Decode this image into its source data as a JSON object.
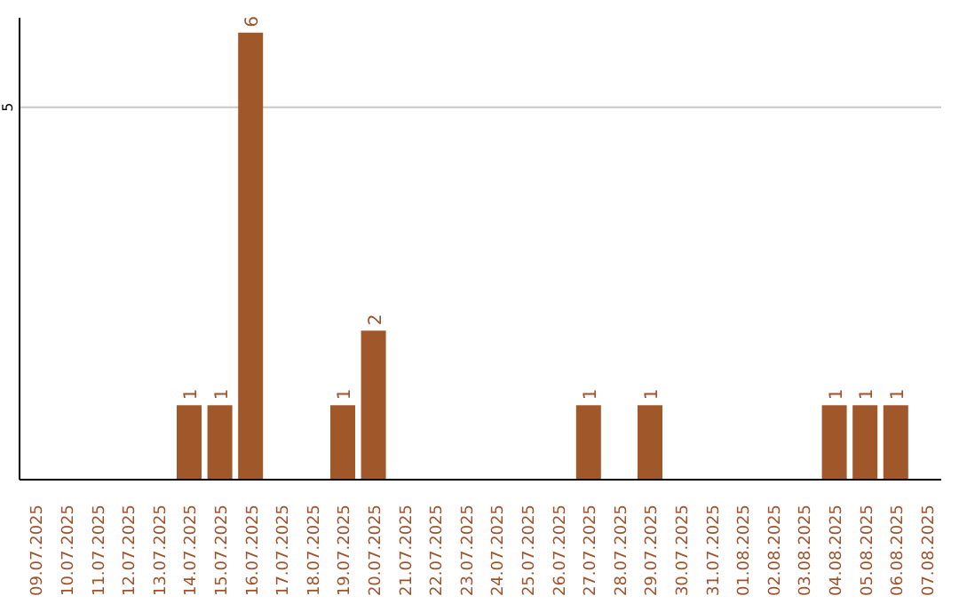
{
  "chart_data": {
    "type": "bar",
    "categories": [
      "09.07.2025",
      "10.07.2025",
      "11.07.2025",
      "12.07.2025",
      "13.07.2025",
      "14.07.2025",
      "15.07.2025",
      "16.07.2025",
      "17.07.2025",
      "18.07.2025",
      "19.07.2025",
      "20.07.2025",
      "21.07.2025",
      "22.07.2025",
      "23.07.2025",
      "24.07.2025",
      "25.07.2025",
      "26.07.2025",
      "27.07.2025",
      "28.07.2025",
      "29.07.2025",
      "30.07.2025",
      "31.07.2025",
      "01.08.2025",
      "02.08.2025",
      "03.08.2025",
      "04.08.2025",
      "05.08.2025",
      "06.08.2025",
      "07.08.2025"
    ],
    "values": [
      0,
      0,
      0,
      0,
      0,
      1,
      1,
      6,
      0,
      0,
      1,
      2,
      0,
      0,
      0,
      0,
      0,
      0,
      1,
      0,
      1,
      0,
      0,
      0,
      0,
      0,
      1,
      1,
      1,
      0
    ],
    "value_labels": [
      null,
      null,
      null,
      null,
      null,
      "1",
      "1",
      "6",
      null,
      null,
      "1",
      "2",
      null,
      null,
      null,
      null,
      null,
      null,
      "1",
      null,
      "1",
      null,
      null,
      null,
      null,
      null,
      "1",
      "1",
      "1",
      null
    ],
    "color": "#a0572a",
    "ylim": [
      0,
      6.2
    ],
    "yticks": [
      5
    ],
    "grid": "y"
  }
}
